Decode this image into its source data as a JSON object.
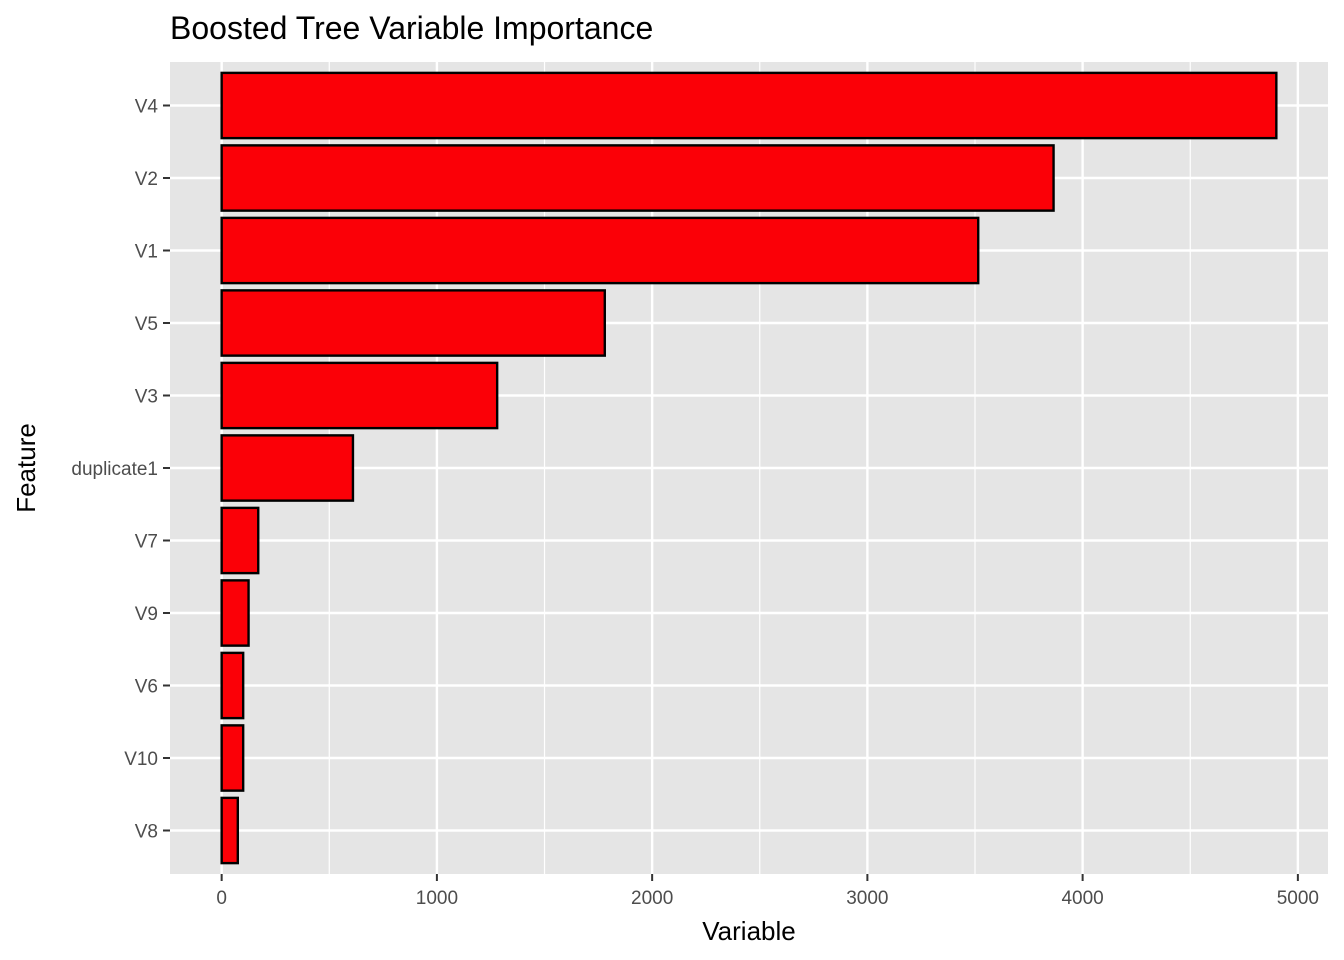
{
  "chart_data": {
    "type": "bar",
    "orientation": "horizontal",
    "title": "Boosted Tree Variable Importance",
    "xlabel": "Variable",
    "ylabel": "Feature",
    "categories": [
      "V4",
      "V2",
      "V1",
      "V5",
      "V3",
      "duplicate1",
      "V7",
      "V9",
      "V6",
      "V10",
      "V8"
    ],
    "values": [
      4900,
      3865,
      3515,
      1780,
      1280,
      610,
      170,
      125,
      100,
      100,
      75
    ],
    "xlim": [
      -240,
      5140
    ],
    "xticks": [
      0,
      1000,
      2000,
      3000,
      4000,
      5000
    ],
    "grid": true,
    "legend": "none",
    "colors": {
      "bar_fill": "#fb0007",
      "bar_stroke": "#000000",
      "panel_background": "#e5e5e5",
      "grid": "#ffffff",
      "tick_label": "#4d4d4d",
      "tick_mark": "#333333"
    }
  }
}
